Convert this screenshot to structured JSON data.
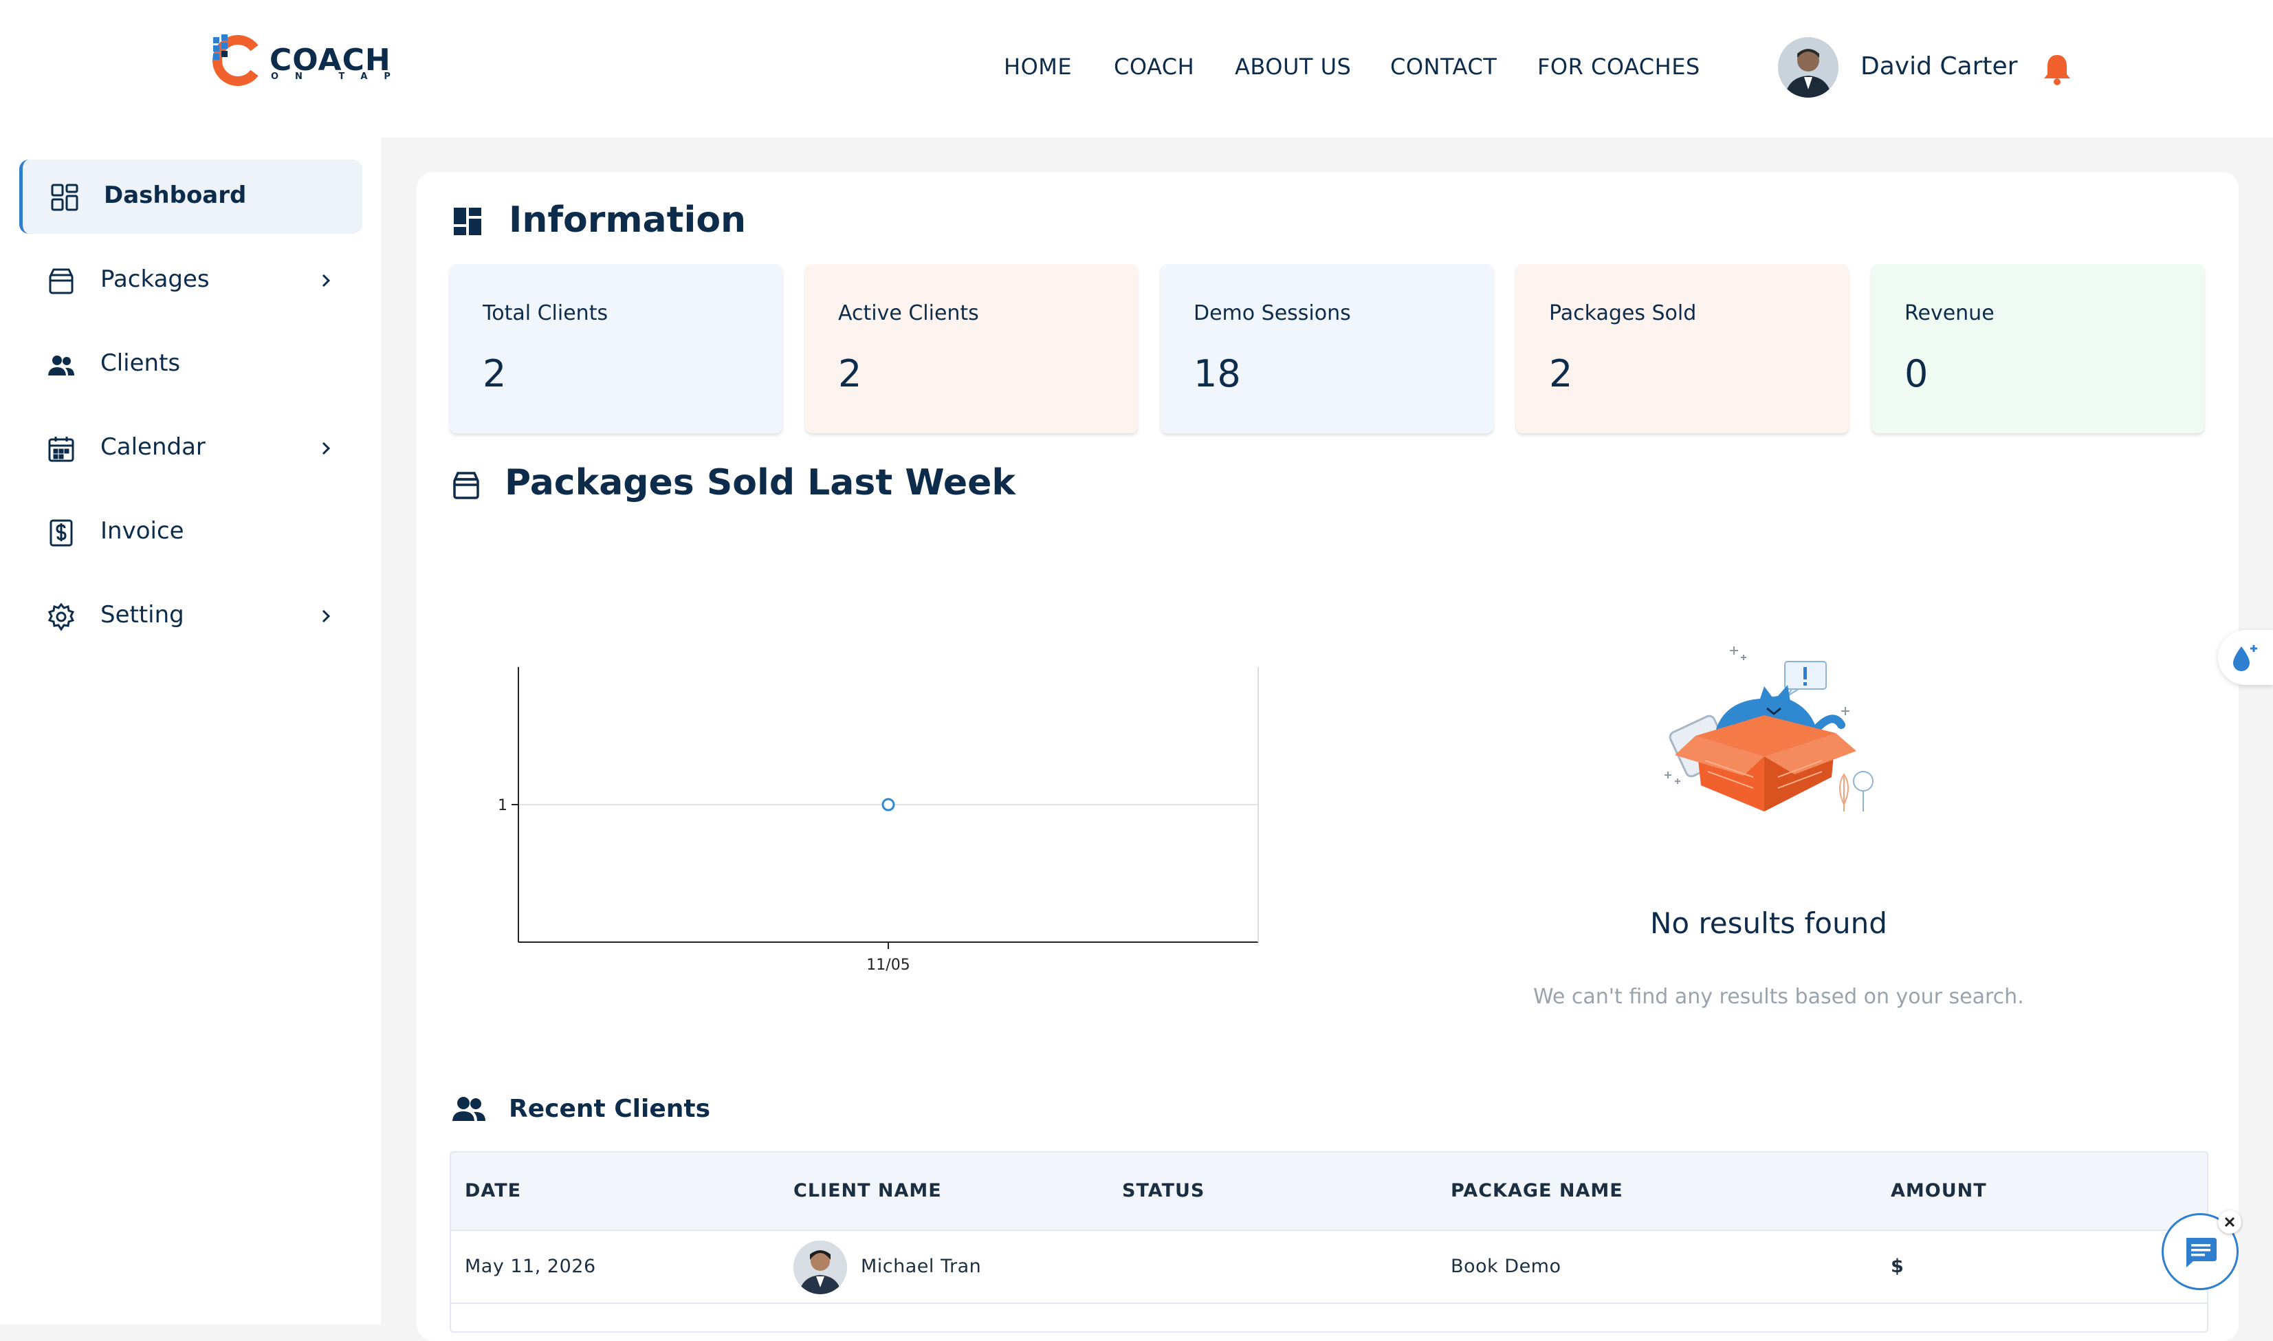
{
  "header": {
    "logo_text": "COACH",
    "logo_sub": "ON TAP",
    "nav": [
      "HOME",
      "COACH",
      "ABOUT US",
      "CONTACT",
      "FOR COACHES"
    ],
    "user_name": "David Carter"
  },
  "sidebar": {
    "items": [
      {
        "label": "Dashboard",
        "icon": "dashboard-icon",
        "active": true
      },
      {
        "label": "Packages",
        "icon": "package-icon",
        "has_chevron": true
      },
      {
        "label": "Clients",
        "icon": "users-icon"
      },
      {
        "label": "Calendar",
        "icon": "calendar-icon",
        "has_chevron": true
      },
      {
        "label": "Invoice",
        "icon": "invoice-icon"
      },
      {
        "label": "Setting",
        "icon": "gear-icon",
        "has_chevron": true
      }
    ]
  },
  "information": {
    "title": "Information",
    "stats": [
      {
        "label": "Total Clients",
        "value": "2",
        "color": "#f1f6fc"
      },
      {
        "label": "Active Clients",
        "value": "2",
        "color": "#fdf3ef"
      },
      {
        "label": "Demo Sessions",
        "value": "18",
        "color": "#f1f6fc"
      },
      {
        "label": "Packages Sold",
        "value": "2",
        "color": "#fdf3ef"
      },
      {
        "label": "Revenue",
        "value": "0",
        "color": "#eefaf2"
      }
    ]
  },
  "packages_sold": {
    "title": "Packages Sold Last Week"
  },
  "chart_data": {
    "type": "scatter",
    "categories": [
      "11/05"
    ],
    "values": [
      1
    ],
    "y_ticks": [
      "1"
    ],
    "grid": true,
    "color": "#2f88d0"
  },
  "empty_state": {
    "title": "No results found",
    "subtitle": "We can't find any results based on your search."
  },
  "recent_clients": {
    "title": "Recent Clients",
    "columns": [
      "DATE",
      "CLIENT NAME",
      "STATUS",
      "PACKAGE NAME",
      "AMOUNT"
    ],
    "rows": [
      {
        "date": "May 11, 2026",
        "client": "Michael  Tran",
        "status": "",
        "package": "Book Demo",
        "amount": "$"
      }
    ]
  },
  "colors": {
    "accent": "#2f7fd0",
    "brand_orange": "#f0612d",
    "text": "#0d2b4a"
  }
}
